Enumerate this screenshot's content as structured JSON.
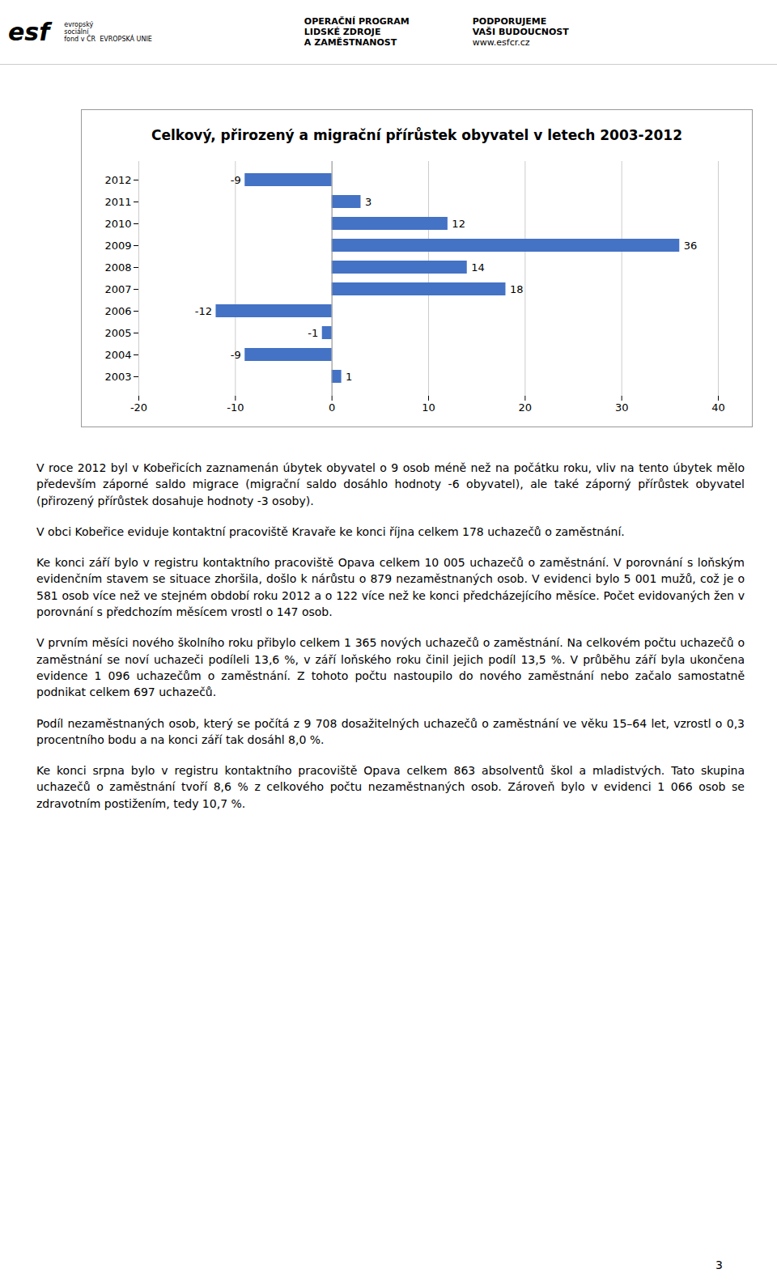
{
  "page": {
    "header": [
      [
        "esf"
      ],
      [
        "evropský",
        "sociální",
        "fond v ČR  EVROPSKÁ UNIE"
      ],
      [
        "OPERAČNÍ PROGRAM",
        "LIDSKÉ ZDROJE",
        "A ZAMĚSTNANOST"
      ],
      [
        "PODPORUJEME",
        "VAŠI BUDOUCNOST",
        "www.esfcr.cz"
      ]
    ],
    "paragraphs": [
      "V roce 2012 byl v Kobeřicích zaznamenán úbytek obyvatel o 9 osob méně než na počátku roku, vliv na tento úbytek mělo především záporné saldo migrace (migrační saldo dosáhlo hodnoty -6 obyvatel), ale také záporný přírůstek obyvatel (přirozený přírůstek dosahuje hodnoty -3 osoby).",
      "V obci Kobeřice eviduje kontaktní pracoviště Kravaře ke konci října celkem 178 uchazečů o zaměstnání.",
      "Ke konci září bylo v registru kontaktního pracoviště Opava celkem 10 005 uchazečů o zaměstnání. V porovnání s loňským evidenčním stavem se situace zhoršila, došlo k nárůstu o 879 nezaměstnaných osob. V evidenci bylo 5 001 mužů, což je o 581 osob více než ve stejném období roku 2012 a o 122 více než ke konci předcházejícího měsíce. Počet evidovaných žen v porovnání s předchozím měsícem vrostl o 147 osob.",
      "V prvním měsíci nového školního roku přibylo celkem 1 365 nových uchazečů o zaměstnání. Na celkovém počtu uchazečů o zaměstnání se noví uchazeči podíleli 13,6 %, v září loňského roku činil jejich podíl 13,5 %. V průběhu září byla ukončena evidence 1 096 uchazečům o zaměstnání. Z tohoto počtu nastoupilo do nového zaměstnání nebo začalo samostatně podnikat celkem 697 uchazečů.",
      "Podíl nezaměstnaných osob, který se počítá z 9 708 dosažitelných uchazečů o zaměstnání ve věku 15–64 let, vzrostl o 0,3 procentního bodu a na konci září tak dosáhl 8,0 %.",
      "Ke konci srpna bylo v registru kontaktního pracoviště Opava celkem 863 absolventů škol a mladistvých. Tato skupina uchazečů o zaměstnání tvoří 8,6 % z celkového počtu nezaměstnaných osob. Zároveň bylo v evidenci 1 066 osob se zdravotním postižením, tedy 10,7 %."
    ],
    "page_number": "3"
  },
  "chart_data": {
    "type": "bar",
    "orientation": "horizontal",
    "title": "Celkový, přirozený a migrační přírůstek obyvatel v letech 2003-2012",
    "categories": [
      "2012",
      "2011",
      "2010",
      "2009",
      "2008",
      "2007",
      "2006",
      "2005",
      "2004",
      "2003"
    ],
    "values": [
      -9,
      3,
      12,
      36,
      14,
      18,
      -12,
      -1,
      -9,
      1
    ],
    "color": "#4472C4",
    "xlim": [
      -20,
      40
    ],
    "xticks": [
      -20,
      -10,
      0,
      10,
      20,
      30,
      40
    ],
    "grid": true,
    "data_labels": true
  }
}
